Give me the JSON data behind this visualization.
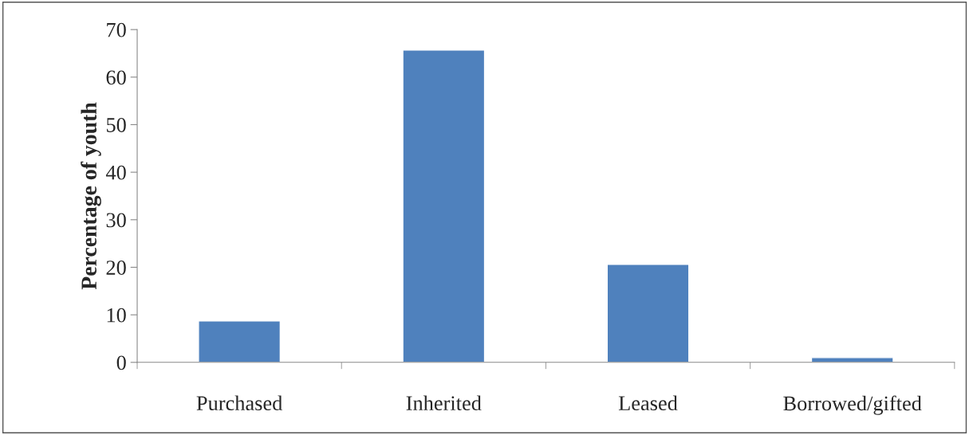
{
  "chart_data": {
    "type": "bar",
    "ylabel": "Percentage of youth",
    "categories": [
      "Purchased",
      "Inherited",
      "Leased",
      "Borrowed/gifted"
    ],
    "values": [
      8.7,
      65.7,
      20.6,
      1.0
    ],
    "color": "#4f81bd",
    "ylim": [
      0,
      70
    ],
    "yticks": [
      0,
      10,
      20,
      30,
      40,
      50,
      60,
      70
    ],
    "grid": false,
    "legend": false
  }
}
